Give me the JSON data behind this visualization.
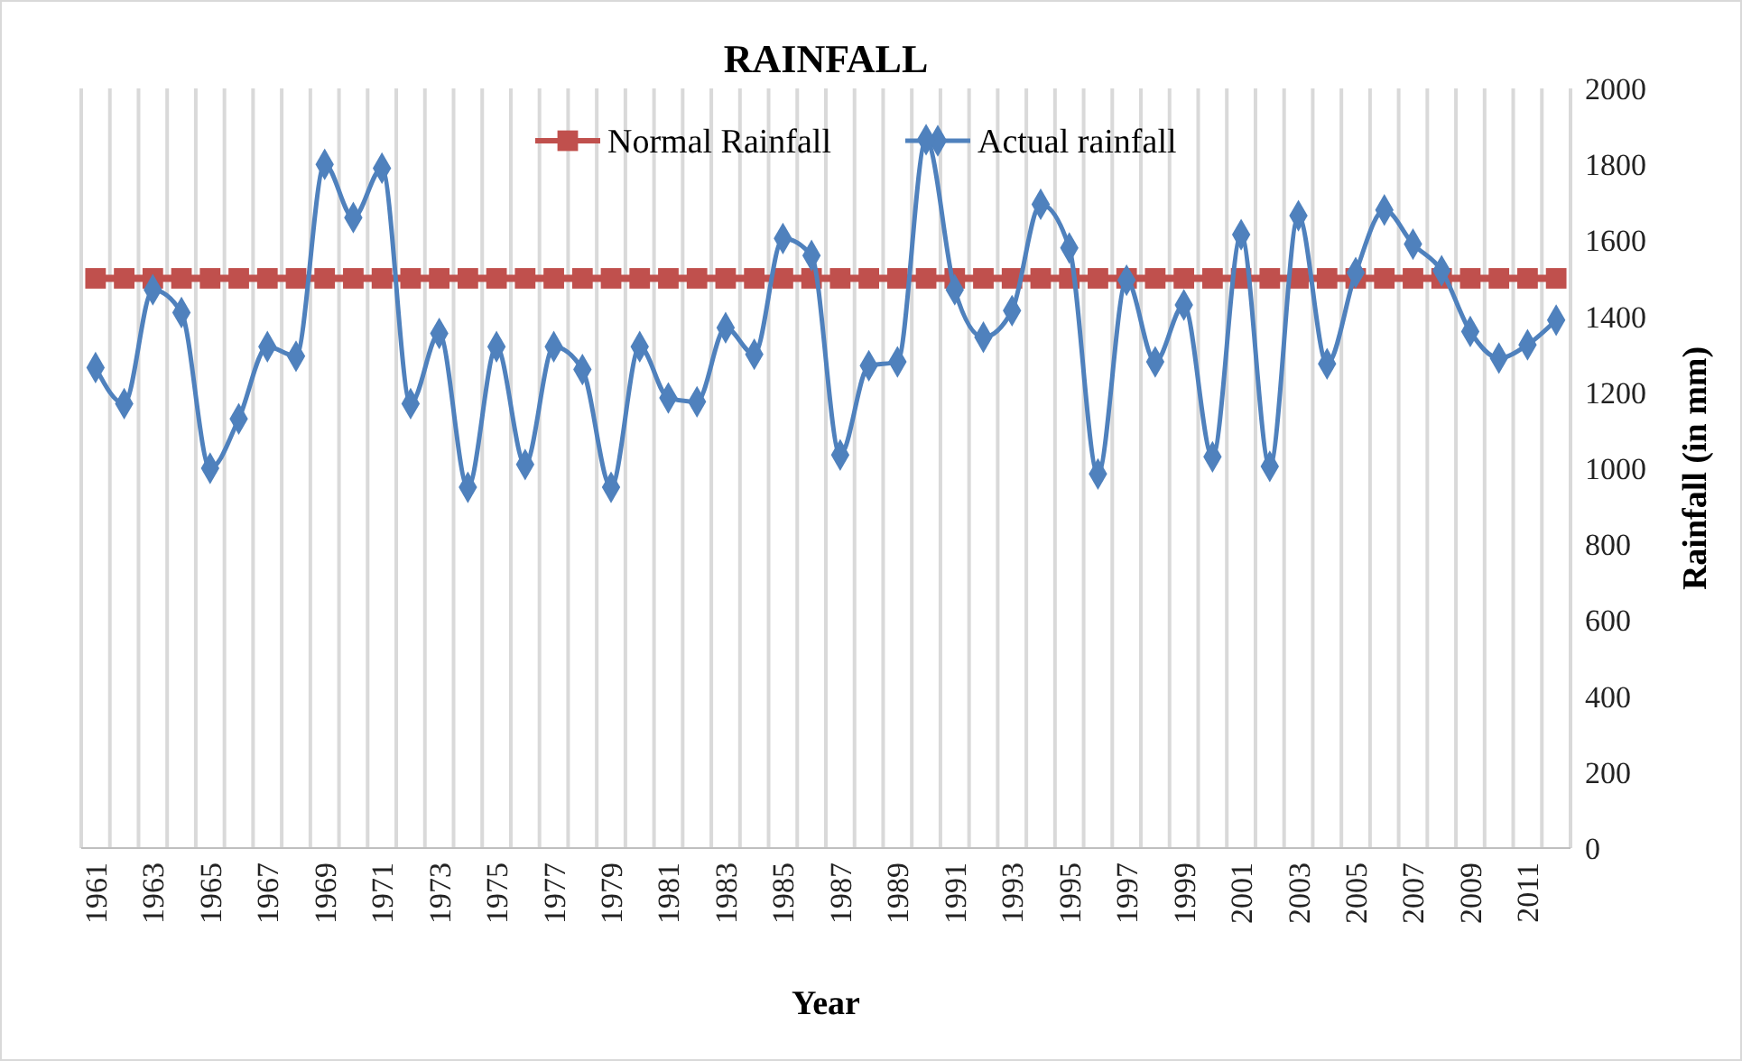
{
  "chart_data": {
    "type": "line",
    "title": "RAINFALL",
    "xlabel": "Year",
    "ylabel": "Rainfall (in mm)",
    "categories": [
      "1961",
      null,
      "1963",
      null,
      "1965",
      null,
      "1967",
      null,
      "1969",
      null,
      "1971",
      null,
      "1973",
      null,
      "1975",
      null,
      "1977",
      null,
      "1979",
      null,
      "1981",
      null,
      "1983",
      null,
      "1985",
      null,
      "1987",
      null,
      "1989",
      null,
      "1991",
      null,
      "1993",
      null,
      "1995",
      null,
      "1997",
      null,
      "1999",
      null,
      "2001",
      null,
      "2003",
      null,
      "2005",
      null,
      "2007",
      null,
      "2009",
      null,
      "2011",
      null
    ],
    "series": [
      {
        "name": "Normal Rainfall",
        "color": "#c0504d",
        "marker": "square",
        "values": [
          1500,
          1500,
          1500,
          1500,
          1500,
          1500,
          1500,
          1500,
          1500,
          1500,
          1500,
          1500,
          1500,
          1500,
          1500,
          1500,
          1500,
          1500,
          1500,
          1500,
          1500,
          1500,
          1500,
          1500,
          1500,
          1500,
          1500,
          1500,
          1500,
          1500,
          1500,
          1500,
          1500,
          1500,
          1500,
          1500,
          1500,
          1500,
          1500,
          1500,
          1500,
          1500,
          1500,
          1500,
          1500,
          1500,
          1500,
          1500,
          1500,
          1500,
          1500,
          1500
        ]
      },
      {
        "name": "Actual rainfall",
        "color": "#4f81bd",
        "marker": "diamond",
        "values": [
          1265,
          1170,
          1470,
          1410,
          1000,
          1130,
          1320,
          1295,
          1800,
          1660,
          1790,
          1170,
          1355,
          950,
          1320,
          1010,
          1320,
          1260,
          950,
          1320,
          1185,
          1175,
          1370,
          1300,
          1605,
          1560,
          1035,
          1270,
          1280,
          1865,
          1470,
          1345,
          1415,
          1695,
          1580,
          985,
          1495,
          1280,
          1430,
          1030,
          1615,
          1005,
          1665,
          1275,
          1515,
          1680,
          1590,
          1520,
          1360,
          1290,
          1325,
          1390
        ]
      }
    ],
    "ylim": [
      0,
      2000
    ],
    "yticks": [
      0,
      200,
      400,
      600,
      800,
      1000,
      1200,
      1400,
      1600,
      1800,
      2000
    ],
    "grid": "x",
    "legend": "top"
  }
}
